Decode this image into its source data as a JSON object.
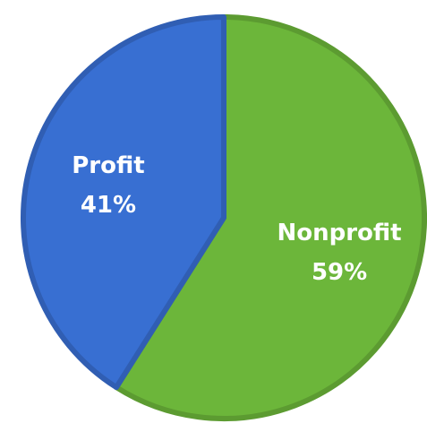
{
  "chart_data": {
    "type": "pie",
    "categories": [
      "Nonprofit",
      "Profit"
    ],
    "values": [
      59,
      41
    ],
    "value_labels": [
      "59%",
      "41%"
    ],
    "colors": [
      "#6cb63a",
      "#386fd2"
    ]
  }
}
